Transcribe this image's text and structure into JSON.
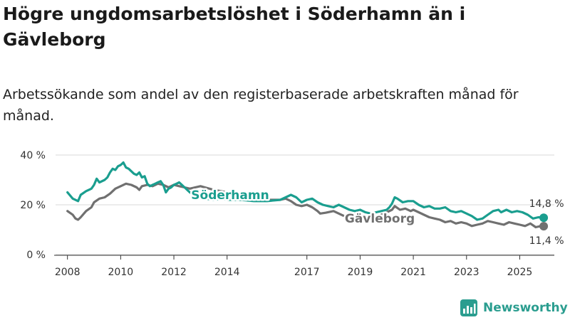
{
  "title": "Högre ungdomsarbetslöshet i Söderhamn än i Gävleborg",
  "subtitle": "Arbetssökande som andel av den registerbaserade arbetskraften månad för månad.",
  "brand": "Newsworthy",
  "colors": {
    "soderhamn": "#1a9e8f",
    "gavleborg": "#707070",
    "grid": "#d9d9d9"
  },
  "chart_data": {
    "type": "line",
    "title": "Högre ungdomsarbetslöshet i Söderhamn än i Gävleborg",
    "xlabel": "",
    "ylabel": "",
    "xlim": [
      2007.5,
      2026.3
    ],
    "ylim": [
      0,
      40
    ],
    "y_ticks": [
      0,
      20,
      40
    ],
    "y_tick_labels": [
      "0 %",
      "20 %",
      "40 %"
    ],
    "x_ticks": [
      2008,
      2010,
      2012,
      2014,
      2017,
      2019,
      2021,
      2023,
      2025
    ],
    "x_tick_labels": [
      "2008",
      "2010",
      "2012",
      "2014",
      "2017",
      "2019",
      "2021",
      "2023",
      "2025"
    ],
    "series": [
      {
        "name": "Söderhamn",
        "label": "Söderhamn",
        "end_label": "14,8 %",
        "points": [
          [
            2008.0,
            25.0
          ],
          [
            2008.2,
            22.5
          ],
          [
            2008.4,
            21.5
          ],
          [
            2008.5,
            24.0
          ],
          [
            2008.7,
            25.5
          ],
          [
            2008.9,
            26.5
          ],
          [
            2009.0,
            28.0
          ],
          [
            2009.1,
            30.5
          ],
          [
            2009.2,
            29.0
          ],
          [
            2009.4,
            30.0
          ],
          [
            2009.5,
            31.0
          ],
          [
            2009.6,
            33.0
          ],
          [
            2009.7,
            34.5
          ],
          [
            2009.8,
            34.0
          ],
          [
            2009.9,
            35.5
          ],
          [
            2010.0,
            36.0
          ],
          [
            2010.1,
            37.0
          ],
          [
            2010.2,
            35.0
          ],
          [
            2010.3,
            34.5
          ],
          [
            2010.4,
            33.5
          ],
          [
            2010.5,
            32.5
          ],
          [
            2010.6,
            32.0
          ],
          [
            2010.7,
            33.0
          ],
          [
            2010.8,
            31.0
          ],
          [
            2010.9,
            31.5
          ],
          [
            2011.0,
            28.5
          ],
          [
            2011.1,
            27.5
          ],
          [
            2011.2,
            28.0
          ],
          [
            2011.3,
            28.5
          ],
          [
            2011.4,
            29.0
          ],
          [
            2011.5,
            29.5
          ],
          [
            2011.6,
            28.0
          ],
          [
            2011.7,
            25.0
          ],
          [
            2011.8,
            26.5
          ],
          [
            2011.9,
            27.0
          ],
          [
            2012.0,
            28.0
          ],
          [
            2012.1,
            28.5
          ],
          [
            2012.2,
            29.0
          ],
          [
            2012.4,
            27.0
          ],
          [
            2012.5,
            26.0
          ],
          [
            2012.6,
            25.0
          ],
          [
            2012.8,
            24.0
          ],
          [
            2013.0,
            23.0
          ],
          [
            2013.2,
            22.5
          ],
          [
            2013.5,
            22.0
          ],
          [
            2013.8,
            22.5
          ],
          [
            2014.0,
            22.0
          ],
          [
            2014.5,
            22.0
          ],
          [
            2015.0,
            21.5
          ],
          [
            2015.5,
            21.5
          ],
          [
            2016.0,
            22.0
          ],
          [
            2016.2,
            23.0
          ],
          [
            2016.4,
            24.0
          ],
          [
            2016.6,
            23.0
          ],
          [
            2016.8,
            21.0
          ],
          [
            2017.0,
            22.0
          ],
          [
            2017.2,
            22.5
          ],
          [
            2017.4,
            21.0
          ],
          [
            2017.6,
            20.0
          ],
          [
            2017.8,
            19.5
          ],
          [
            2018.0,
            19.0
          ],
          [
            2018.2,
            20.0
          ],
          [
            2018.4,
            19.0
          ],
          [
            2018.6,
            18.0
          ],
          [
            2018.8,
            17.5
          ],
          [
            2019.0,
            18.0
          ],
          [
            2019.2,
            17.0
          ],
          [
            2019.4,
            16.5
          ],
          [
            2019.6,
            17.0
          ],
          [
            2019.8,
            17.5
          ],
          [
            2020.0,
            18.0
          ],
          [
            2020.1,
            19.0
          ],
          [
            2020.2,
            20.5
          ],
          [
            2020.3,
            23.0
          ],
          [
            2020.4,
            22.5
          ],
          [
            2020.6,
            21.0
          ],
          [
            2020.8,
            21.5
          ],
          [
            2021.0,
            21.5
          ],
          [
            2021.2,
            20.0
          ],
          [
            2021.4,
            19.0
          ],
          [
            2021.6,
            19.5
          ],
          [
            2021.8,
            18.5
          ],
          [
            2022.0,
            18.5
          ],
          [
            2022.2,
            19.0
          ],
          [
            2022.4,
            17.5
          ],
          [
            2022.6,
            17.0
          ],
          [
            2022.8,
            17.5
          ],
          [
            2023.0,
            16.5
          ],
          [
            2023.2,
            15.5
          ],
          [
            2023.4,
            14.0
          ],
          [
            2023.6,
            14.5
          ],
          [
            2023.8,
            16.0
          ],
          [
            2024.0,
            17.5
          ],
          [
            2024.2,
            18.0
          ],
          [
            2024.3,
            17.0
          ],
          [
            2024.5,
            18.0
          ],
          [
            2024.7,
            17.0
          ],
          [
            2024.9,
            17.5
          ],
          [
            2025.1,
            17.0
          ],
          [
            2025.3,
            16.0
          ],
          [
            2025.5,
            14.5
          ],
          [
            2025.7,
            15.0
          ],
          [
            2025.9,
            14.8
          ]
        ]
      },
      {
        "name": "Gävleborg",
        "label": "Gävleborg",
        "end_label": "11,4 %",
        "points": [
          [
            2008.0,
            17.5
          ],
          [
            2008.2,
            16.0
          ],
          [
            2008.3,
            14.5
          ],
          [
            2008.4,
            14.0
          ],
          [
            2008.5,
            15.0
          ],
          [
            2008.7,
            17.5
          ],
          [
            2008.9,
            19.0
          ],
          [
            2009.0,
            21.0
          ],
          [
            2009.2,
            22.5
          ],
          [
            2009.4,
            23.0
          ],
          [
            2009.6,
            24.5
          ],
          [
            2009.8,
            26.5
          ],
          [
            2010.0,
            27.5
          ],
          [
            2010.2,
            28.5
          ],
          [
            2010.4,
            28.0
          ],
          [
            2010.6,
            27.0
          ],
          [
            2010.7,
            26.0
          ],
          [
            2010.8,
            27.5
          ],
          [
            2011.0,
            28.0
          ],
          [
            2011.2,
            27.5
          ],
          [
            2011.4,
            28.5
          ],
          [
            2011.6,
            28.0
          ],
          [
            2011.8,
            27.0
          ],
          [
            2012.0,
            28.0
          ],
          [
            2012.2,
            27.5
          ],
          [
            2012.4,
            27.0
          ],
          [
            2012.6,
            26.5
          ],
          [
            2012.8,
            27.0
          ],
          [
            2013.0,
            27.5
          ],
          [
            2013.5,
            26.0
          ],
          [
            2014.0,
            25.0
          ],
          [
            2014.5,
            24.0
          ],
          [
            2015.0,
            22.5
          ],
          [
            2015.5,
            22.0
          ],
          [
            2016.0,
            22.0
          ],
          [
            2016.2,
            22.5
          ],
          [
            2016.4,
            21.5
          ],
          [
            2016.6,
            20.0
          ],
          [
            2016.8,
            19.5
          ],
          [
            2017.0,
            20.0
          ],
          [
            2017.2,
            19.0
          ],
          [
            2017.4,
            17.5
          ],
          [
            2017.5,
            16.5
          ],
          [
            2017.7,
            16.8
          ],
          [
            2018.0,
            17.5
          ],
          [
            2018.2,
            16.5
          ],
          [
            2018.4,
            15.5
          ],
          [
            2018.6,
            15.0
          ],
          [
            2018.8,
            14.8
          ],
          [
            2019.0,
            15.5
          ],
          [
            2019.2,
            15.0
          ],
          [
            2019.4,
            14.5
          ],
          [
            2019.6,
            15.0
          ],
          [
            2019.8,
            16.0
          ],
          [
            2020.0,
            17.0
          ],
          [
            2020.2,
            18.0
          ],
          [
            2020.3,
            19.5
          ],
          [
            2020.5,
            18.0
          ],
          [
            2020.7,
            18.5
          ],
          [
            2020.9,
            17.5
          ],
          [
            2021.0,
            18.0
          ],
          [
            2021.2,
            17.0
          ],
          [
            2021.4,
            16.0
          ],
          [
            2021.6,
            15.0
          ],
          [
            2021.8,
            14.5
          ],
          [
            2022.0,
            14.0
          ],
          [
            2022.2,
            13.0
          ],
          [
            2022.4,
            13.5
          ],
          [
            2022.6,
            12.5
          ],
          [
            2022.8,
            13.0
          ],
          [
            2023.0,
            12.5
          ],
          [
            2023.2,
            11.5
          ],
          [
            2023.4,
            12.0
          ],
          [
            2023.6,
            12.5
          ],
          [
            2023.8,
            13.5
          ],
          [
            2024.0,
            13.0
          ],
          [
            2024.2,
            12.5
          ],
          [
            2024.4,
            12.0
          ],
          [
            2024.6,
            13.0
          ],
          [
            2024.8,
            12.5
          ],
          [
            2025.0,
            12.0
          ],
          [
            2025.2,
            11.5
          ],
          [
            2025.4,
            12.5
          ],
          [
            2025.6,
            11.0
          ],
          [
            2025.8,
            11.5
          ],
          [
            2025.9,
            11.4
          ]
        ]
      }
    ]
  }
}
